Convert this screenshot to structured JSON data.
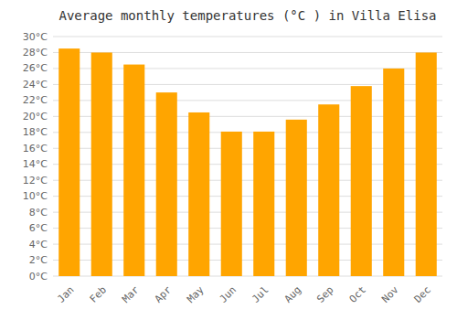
{
  "chart_data": {
    "type": "bar",
    "title": "Average monthly temperatures (°C ) in Villa Elisa",
    "categories": [
      "Jan",
      "Feb",
      "Mar",
      "Apr",
      "May",
      "Jun",
      "Jul",
      "Aug",
      "Sep",
      "Oct",
      "Nov",
      "Dec"
    ],
    "values": [
      28.5,
      28.0,
      26.5,
      23.0,
      20.5,
      18.1,
      18.1,
      19.6,
      21.5,
      23.8,
      26.0,
      28.0
    ],
    "color": "#FFA500",
    "ylim": [
      0,
      30
    ],
    "yticks": [
      {
        "value": 0,
        "label": "0°C"
      },
      {
        "value": 2,
        "label": "2°C"
      },
      {
        "value": 4,
        "label": "4°C"
      },
      {
        "value": 6,
        "label": "6°C"
      },
      {
        "value": 8,
        "label": "8°C"
      },
      {
        "value": 10,
        "label": "10°C"
      },
      {
        "value": 12,
        "label": "12°C"
      },
      {
        "value": 14,
        "label": "14°C"
      },
      {
        "value": 16,
        "label": "16°C"
      },
      {
        "value": 18,
        "label": "18°C"
      },
      {
        "value": 20,
        "label": "20°C"
      },
      {
        "value": 22,
        "label": "22°C"
      },
      {
        "value": 24,
        "label": "24°C"
      },
      {
        "value": 26,
        "label": "26°C"
      },
      {
        "value": 28,
        "label": "28°C"
      },
      {
        "value": 30,
        "label": "30°C"
      }
    ],
    "grid": true
  }
}
